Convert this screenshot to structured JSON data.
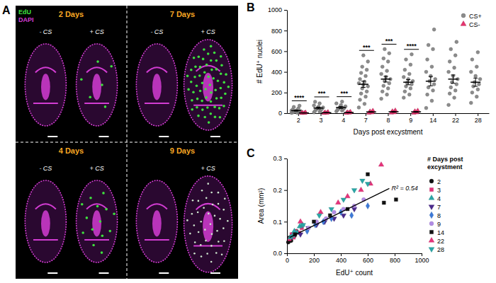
{
  "panel_letters": [
    "A",
    "B",
    "C"
  ],
  "image_panel": {
    "channels": [
      {
        "label": "EdU",
        "color": "#3ee03e"
      },
      {
        "label": "DAPI",
        "color": "#d23cd2"
      }
    ],
    "tiles": [
      {
        "title": "2 Days",
        "left": "- CS",
        "right": "+ CS"
      },
      {
        "title": "7 Days",
        "left": "- CS",
        "right": "+ CS"
      },
      {
        "title": "4 Days",
        "left": "- CS",
        "right": "+ CS"
      },
      {
        "title": "9 Days",
        "left": null,
        "right": "+ CS"
      }
    ]
  },
  "chart_data": [
    {
      "type": "scatter",
      "x_label": "Days post excystment",
      "y_label": "# EdU⁺ nuclei",
      "categories": [
        "2",
        "3",
        "4",
        "7",
        "8",
        "9",
        "14",
        "22",
        "28"
      ],
      "ylim": [
        0,
        1000
      ],
      "yticks": [
        0,
        200,
        400,
        600,
        800,
        1000
      ],
      "legend": "top-right",
      "series": [
        {
          "name": "CS+",
          "color": "#8c8c8c",
          "marker": "circle",
          "values": [
            [
              3,
              5,
              8,
              10,
              12,
              15,
              18,
              20,
              22,
              25,
              30,
              35,
              45,
              60,
              72
            ],
            [
              8,
              15,
              22,
              30,
              38,
              42,
              48,
              55,
              62,
              75,
              95,
              110
            ],
            [
              18,
              25,
              32,
              40,
              45,
              52,
              58,
              66,
              78,
              95,
              112
            ],
            [
              55,
              90,
              130,
              160,
              190,
              210,
              240,
              260,
              275,
              290,
              305,
              330,
              360,
              390,
              420,
              450,
              500,
              560
            ],
            [
              140,
              180,
              210,
              240,
              265,
              290,
              310,
              330,
              350,
              380,
              410,
              450,
              500,
              530,
              580,
              620
            ],
            [
              150,
              180,
              210,
              240,
              260,
              280,
              295,
              310,
              330,
              350,
              380,
              420,
              470,
              520,
              570
            ],
            [
              50,
              120,
              180,
              220,
              250,
              280,
              310,
              330,
              360,
              400,
              450,
              520,
              620,
              660,
              810
            ],
            [
              80,
              150,
              190,
              220,
              250,
              280,
              300,
              330,
              360,
              400,
              440,
              500,
              560,
              620,
              690
            ],
            [
              100,
              160,
              200,
              230,
              260,
              280,
              300,
              330,
              360,
              400,
              450,
              520,
              590
            ]
          ],
          "means": [
            25,
            50,
            55,
            280,
            330,
            300,
            310,
            330,
            300
          ],
          "errors": [
            5,
            9,
            9,
            30,
            28,
            25,
            45,
            40,
            40
          ]
        },
        {
          "name": "CS-",
          "color": "#e8336f",
          "marker": "triangle",
          "values": [
            [
              0,
              1,
              2,
              3,
              5,
              8
            ],
            [
              0,
              2,
              4,
              6,
              9,
              12
            ],
            [
              1,
              3,
              5,
              8,
              10,
              14
            ],
            [
              2,
              5,
              8,
              12,
              18,
              25
            ],
            [
              3,
              6,
              10,
              15,
              20,
              28
            ],
            [
              2,
              5,
              9,
              14,
              20,
              26
            ],
            null,
            null,
            null
          ],
          "means": [
            3,
            5,
            7,
            12,
            14,
            13,
            null,
            null,
            null
          ],
          "errors": [
            1,
            2,
            2,
            3,
            4,
            4,
            null,
            null,
            null
          ]
        }
      ],
      "significance": [
        "****",
        "***",
        "***",
        "***",
        "***",
        "****",
        null,
        null,
        null
      ]
    },
    {
      "type": "scatter",
      "x_label": "EdU⁺ count",
      "y_label": "Area (mm²)",
      "xlim": [
        0,
        1000
      ],
      "xticks": [
        0,
        200,
        400,
        600,
        800,
        1000
      ],
      "ylim": [
        0,
        0.3
      ],
      "yticks": [
        {
          "value": 0,
          "label": "0.0"
        },
        {
          "value": 0.1,
          "label": "0.1"
        },
        {
          "value": 0.2,
          "label": "0.2"
        },
        {
          "value": 0.3,
          "label": "0.3"
        }
      ],
      "legend": "right",
      "legend_title": "# Days post excystment",
      "annotation": "R² = 0.54",
      "trendline": {
        "x": [
          20,
          760
        ],
        "values": [
          0.05,
          0.205
        ]
      },
      "series": [
        {
          "name": "2",
          "color": "#111111",
          "marker": "circle",
          "x": [
            10,
            20,
            30,
            40,
            55,
            70
          ],
          "values": [
            0.035,
            0.05,
            0.04,
            0.06,
            0.055,
            0.07
          ]
        },
        {
          "name": "3",
          "color": "#e6337a",
          "marker": "square",
          "x": [
            20,
            35,
            50,
            65,
            90,
            110
          ],
          "values": [
            0.045,
            0.06,
            0.05,
            0.07,
            0.065,
            0.08
          ]
        },
        {
          "name": "4",
          "color": "#2aa6a6",
          "marker": "triangle",
          "x": [
            25,
            40,
            55,
            75,
            95,
            115
          ],
          "values": [
            0.05,
            0.055,
            0.07,
            0.065,
            0.085,
            0.09
          ]
        },
        {
          "name": "7",
          "color": "#4b2a8c",
          "marker": "triangle-down",
          "x": [
            100,
            160,
            220,
            280,
            350,
            420,
            500
          ],
          "values": [
            0.06,
            0.08,
            0.09,
            0.1,
            0.11,
            0.12,
            0.14
          ]
        },
        {
          "name": "8",
          "color": "#3d7ad9",
          "marker": "diamond",
          "x": [
            150,
            210,
            270,
            330,
            400,
            480,
            600
          ],
          "values": [
            0.07,
            0.09,
            0.1,
            0.11,
            0.13,
            0.12,
            0.15
          ]
        },
        {
          "name": "9",
          "color": "#b28ce6",
          "marker": "circle",
          "x": [
            160,
            220,
            290,
            350,
            420,
            500,
            570
          ],
          "values": [
            0.08,
            0.1,
            0.11,
            0.13,
            0.14,
            0.15,
            0.17
          ]
        },
        {
          "name": "14",
          "color": "#111111",
          "marker": "square",
          "x": [
            60,
            200,
            320,
            450,
            600,
            720,
            810
          ],
          "values": [
            0.06,
            0.1,
            0.12,
            0.14,
            0.25,
            0.16,
            0.17
          ]
        },
        {
          "name": "22",
          "color": "#e6337a",
          "marker": "triangle",
          "x": [
            100,
            250,
            380,
            450,
            550,
            620,
            700
          ],
          "values": [
            0.1,
            0.13,
            0.16,
            0.18,
            0.2,
            0.22,
            0.28
          ]
        },
        {
          "name": "28",
          "color": "#2aa6a6",
          "marker": "triangle-down",
          "x": [
            120,
            240,
            330,
            420,
            500,
            560,
            600
          ],
          "values": [
            0.09,
            0.12,
            0.14,
            0.17,
            0.2,
            0.23,
            0.22
          ]
        }
      ]
    }
  ]
}
